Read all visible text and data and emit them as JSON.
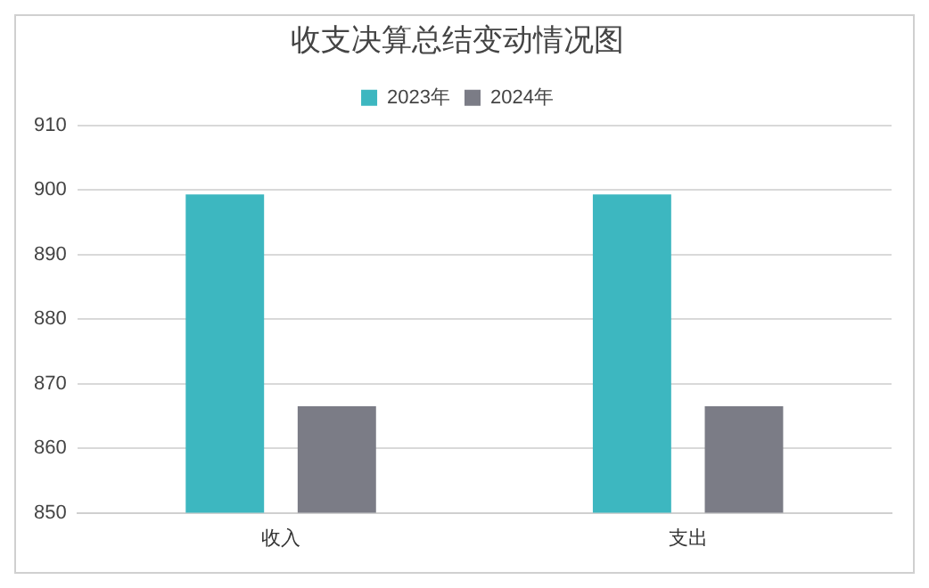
{
  "chart_data": {
    "type": "bar",
    "title": "收支决算总结变动情况图",
    "categories": [
      "收入",
      "支出"
    ],
    "series": [
      {
        "name": "2023年",
        "color": "#3db7c0",
        "values": [
          899.3,
          899.3
        ]
      },
      {
        "name": "2024年",
        "color": "#7b7c86",
        "values": [
          866.5,
          866.5
        ]
      }
    ],
    "ylim": [
      850,
      910
    ],
    "yticks": [
      850,
      860,
      870,
      880,
      890,
      900,
      910
    ],
    "grid": "y",
    "legend": "top"
  }
}
